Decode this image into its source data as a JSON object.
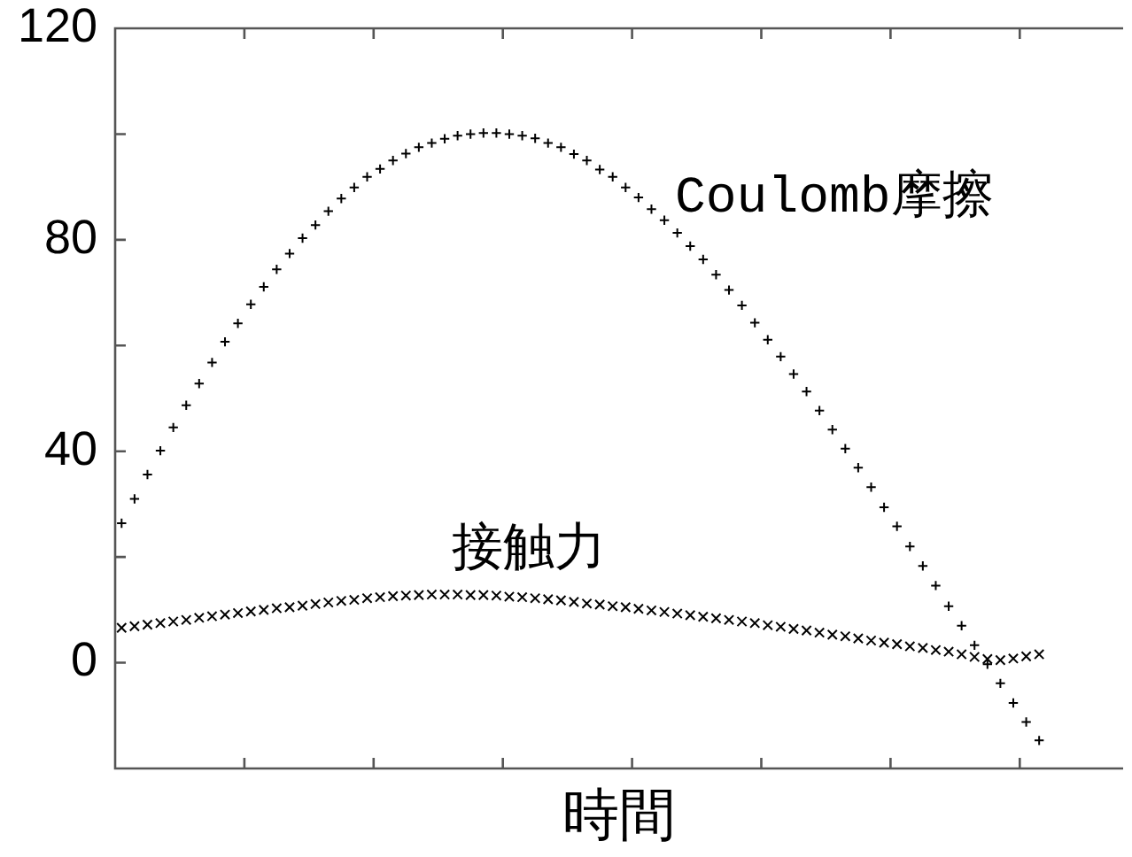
{
  "chart_data": {
    "type": "scatter",
    "xlabel": "時間",
    "categories": [
      null,
      null,
      null,
      null,
      null,
      null,
      null,
      null,
      null,
      null,
      null,
      null,
      null,
      null,
      null,
      null,
      null,
      null,
      null,
      null,
      null,
      null,
      null,
      null,
      null,
      null,
      null,
      null,
      null,
      null,
      null,
      null,
      null,
      null,
      null,
      null,
      null,
      null,
      null,
      null,
      null,
      null,
      null,
      null,
      null,
      null,
      null,
      null,
      null,
      null,
      null,
      null,
      null,
      null,
      null,
      null,
      null,
      null,
      null,
      null,
      null,
      null,
      null,
      null,
      null,
      null,
      null,
      null,
      null,
      null,
      null,
      null,
      null,
      null,
      null,
      null,
      null,
      null
    ],
    "series": [
      {
        "name": "Coulomb摩擦",
        "color": "#000000",
        "marker": "cross",
        "values": [
          26.4,
          31.0,
          35.6,
          40.1,
          44.5,
          48.7,
          52.8,
          56.8,
          60.7,
          64.2,
          67.8,
          71.1,
          74.4,
          77.4,
          80.3,
          82.8,
          85.4,
          87.8,
          89.9,
          91.9,
          93.4,
          95.0,
          96.3,
          97.5,
          98.3,
          99.1,
          99.7,
          100.0,
          100.2,
          100.2,
          100.0,
          99.7,
          99.2,
          98.3,
          97.5,
          96.2,
          95.0,
          93.3,
          91.9,
          89.9,
          88.0,
          85.8,
          83.7,
          81.3,
          78.8,
          76.3,
          73.4,
          70.5,
          67.6,
          64.3,
          61.1,
          57.9,
          54.6,
          51.3,
          47.7,
          44.1,
          40.5,
          36.9,
          33.2,
          29.4,
          25.8,
          22.0,
          18.3,
          14.6,
          10.7,
          7.0,
          3.3,
          -0.3,
          -3.9,
          -7.6,
          -11.2,
          -14.7,
          null,
          null,
          null,
          null,
          null,
          null
        ]
      },
      {
        "name": "接触力",
        "color": "#000000",
        "marker": "x",
        "values": [
          6.6,
          6.9,
          7.2,
          7.5,
          7.8,
          8.1,
          8.5,
          8.8,
          9.1,
          9.4,
          9.7,
          10.0,
          10.3,
          10.5,
          10.8,
          11.1,
          11.4,
          11.7,
          11.9,
          12.2,
          12.4,
          12.6,
          12.7,
          12.8,
          12.9,
          12.9,
          12.9,
          12.8,
          12.8,
          12.7,
          12.5,
          12.4,
          12.2,
          12.0,
          11.8,
          11.5,
          11.2,
          11.0,
          10.7,
          10.5,
          10.2,
          9.9,
          9.6,
          9.3,
          9.0,
          8.7,
          8.4,
          8.1,
          7.8,
          7.5,
          7.1,
          6.8,
          6.4,
          6.1,
          5.7,
          5.3,
          5.0,
          4.6,
          4.2,
          3.8,
          3.5,
          3.1,
          2.8,
          2.4,
          2.1,
          1.6,
          1.1,
          0.7,
          0.5,
          0.8,
          1.2,
          1.6,
          null,
          null,
          null,
          null,
          null,
          null
        ]
      }
    ],
    "ylim": [
      -20,
      120
    ],
    "yticks": [
      0,
      {
        "value": 20,
        "label": null
      },
      40,
      {
        "value": 60,
        "label": null
      },
      80,
      {
        "value": 100,
        "label": null
      },
      120
    ],
    "tick_labels": "y"
  }
}
